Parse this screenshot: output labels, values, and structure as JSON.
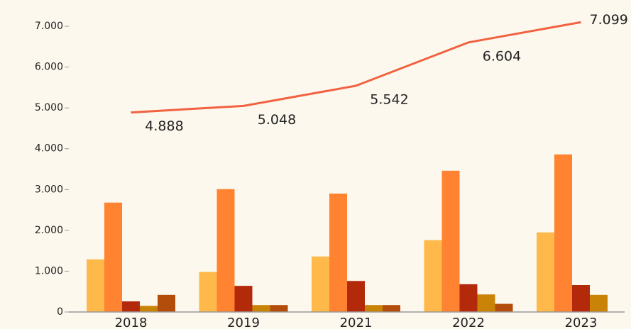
{
  "chart_data": {
    "type": "bar_line",
    "categories": [
      "2018",
      "2019",
      "2021",
      "2022",
      "2023"
    ],
    "series": [
      {
        "color": "#ffb94a",
        "values": [
          1290,
          980,
          1360,
          1760,
          1950
        ]
      },
      {
        "color": "#ff8330",
        "values": [
          2680,
          3010,
          2900,
          3460,
          3860
        ]
      },
      {
        "color": "#b32a0b",
        "values": [
          260,
          640,
          760,
          680,
          660
        ]
      },
      {
        "color": "#c98408",
        "values": [
          150,
          170,
          170,
          430,
          420
        ]
      },
      {
        "color": "#b34d0b",
        "values": [
          420,
          170,
          170,
          200,
          null
        ]
      }
    ],
    "line": {
      "color": "#f26140",
      "values": [
        4888,
        5048,
        5542,
        6604,
        7099
      ],
      "value_labels": [
        "4.888",
        "5.048",
        "5.542",
        "6.604",
        "7.099"
      ]
    },
    "ylim": [
      0,
      7000
    ],
    "yticks": [
      {
        "value": 0,
        "label": "0"
      },
      {
        "value": 1000,
        "label": "1.000"
      },
      {
        "value": 2000,
        "label": "2.000"
      },
      {
        "value": 3000,
        "label": "3.000"
      },
      {
        "value": 4000,
        "label": "4.000"
      },
      {
        "value": 5000,
        "label": "5.000"
      },
      {
        "value": 6000,
        "label": "6.000"
      },
      {
        "value": 7000,
        "label": "7.000"
      }
    ]
  }
}
